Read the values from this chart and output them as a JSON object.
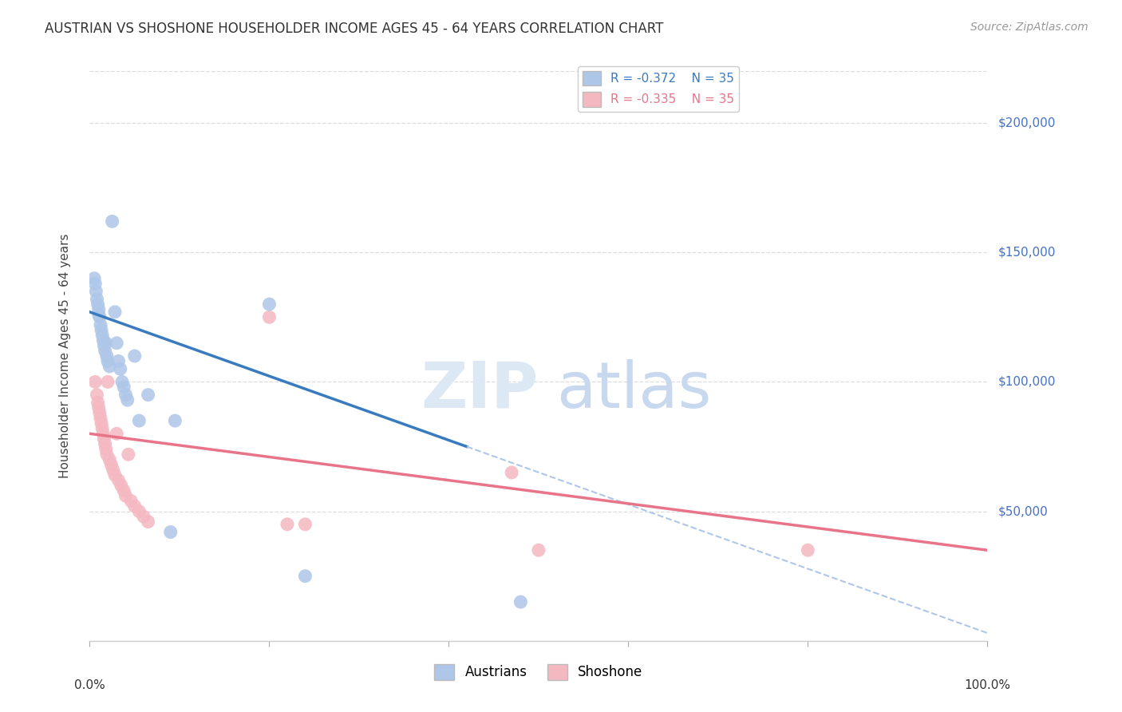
{
  "title": "AUSTRIAN VS SHOSHONE HOUSEHOLDER INCOME AGES 45 - 64 YEARS CORRELATION CHART",
  "source": "Source: ZipAtlas.com",
  "ylabel": "Householder Income Ages 45 - 64 years",
  "y_tick_labels": [
    "$50,000",
    "$100,000",
    "$150,000",
    "$200,000"
  ],
  "y_tick_values": [
    50000,
    100000,
    150000,
    200000
  ],
  "ylim": [
    0,
    220000
  ],
  "xlim": [
    0.0,
    1.0
  ],
  "austrians_R": -0.372,
  "shoshone_R": -0.335,
  "N": 35,
  "austrians_color": "#aec6e8",
  "shoshone_color": "#f4b8c1",
  "trendline_austrians_color": "#3a7abf",
  "trendline_shoshone_color": "#e8748a",
  "trendline_austrians_dashed_color": "#aec6e8",
  "background_color": "#ffffff",
  "grid_color": "#dddddd",
  "austrians_x": [
    0.005,
    0.006,
    0.007,
    0.008,
    0.009,
    0.01,
    0.01,
    0.011,
    0.012,
    0.013,
    0.014,
    0.015,
    0.016,
    0.017,
    0.018,
    0.019,
    0.02,
    0.022,
    0.025,
    0.028,
    0.03,
    0.032,
    0.034,
    0.036,
    0.038,
    0.04,
    0.042,
    0.05,
    0.055,
    0.065,
    0.09,
    0.095,
    0.2,
    0.24,
    0.48
  ],
  "austrians_y": [
    140000,
    138000,
    135000,
    132000,
    130000,
    128000,
    126000,
    125000,
    122000,
    120000,
    118000,
    116000,
    114000,
    112000,
    115000,
    110000,
    108000,
    106000,
    162000,
    127000,
    115000,
    108000,
    105000,
    100000,
    98000,
    95000,
    93000,
    110000,
    85000,
    95000,
    42000,
    85000,
    130000,
    25000,
    15000
  ],
  "shoshone_x": [
    0.006,
    0.008,
    0.009,
    0.01,
    0.011,
    0.012,
    0.013,
    0.014,
    0.015,
    0.016,
    0.017,
    0.018,
    0.019,
    0.02,
    0.022,
    0.024,
    0.026,
    0.028,
    0.03,
    0.032,
    0.035,
    0.038,
    0.04,
    0.043,
    0.046,
    0.05,
    0.055,
    0.06,
    0.065,
    0.2,
    0.22,
    0.24,
    0.47,
    0.5,
    0.8
  ],
  "shoshone_y": [
    100000,
    95000,
    92000,
    90000,
    88000,
    86000,
    84000,
    82000,
    80000,
    78000,
    76000,
    74000,
    72000,
    100000,
    70000,
    68000,
    66000,
    64000,
    80000,
    62000,
    60000,
    58000,
    56000,
    72000,
    54000,
    52000,
    50000,
    48000,
    46000,
    125000,
    45000,
    45000,
    65000,
    35000,
    35000
  ],
  "aus_trendline_x0": 0.0,
  "aus_trendline_y0": 127000,
  "aus_trendline_x1": 0.42,
  "aus_trendline_y1": 75000,
  "aus_trendline_dash_x0": 0.42,
  "aus_trendline_dash_y0": 75000,
  "aus_trendline_dash_x1": 1.0,
  "aus_trendline_dash_y1": 3000,
  "sho_trendline_x0": 0.0,
  "sho_trendline_y0": 80000,
  "sho_trendline_x1": 1.0,
  "sho_trendline_y1": 35000
}
